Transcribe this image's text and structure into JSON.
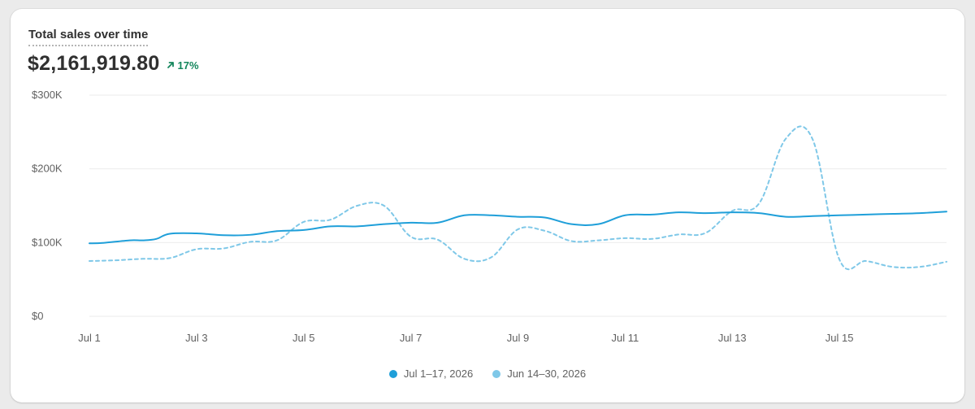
{
  "card": {
    "title": "Total sales over time",
    "total": "$2,161,919.80",
    "change": "17%",
    "change_direction": "up",
    "change_color": "#14865c"
  },
  "chart_data": {
    "type": "line",
    "ylim": [
      0,
      300000
    ],
    "yticks": [
      {
        "value": 0,
        "label": "$0"
      },
      {
        "value": 100000,
        "label": "$100K"
      },
      {
        "value": 200000,
        "label": "$200K"
      },
      {
        "value": 300000,
        "label": "$300K"
      }
    ],
    "x_range": [
      1,
      17
    ],
    "xticks": [
      {
        "value": 1,
        "label": "Jul 1"
      },
      {
        "value": 3,
        "label": "Jul 3"
      },
      {
        "value": 5,
        "label": "Jul 5"
      },
      {
        "value": 7,
        "label": "Jul 7"
      },
      {
        "value": 9,
        "label": "Jul 9"
      },
      {
        "value": 11,
        "label": "Jul 11"
      },
      {
        "value": 13,
        "label": "Jul 13"
      },
      {
        "value": 15,
        "label": "Jul 15"
      }
    ],
    "grid": true,
    "legend": "bottom",
    "series": [
      {
        "name": "Jul 1–17, 2026",
        "color": "#1f9fd9",
        "style": "solid",
        "x": [
          1,
          1.25,
          1.75,
          2,
          2.25,
          2.5,
          3,
          3.5,
          4,
          4.5,
          5,
          5.5,
          6,
          6.5,
          7,
          7.5,
          8,
          8.5,
          9,
          9.5,
          10,
          10.5,
          11,
          11.5,
          12,
          12.5,
          13,
          13.5,
          14,
          14.5,
          15,
          15.5,
          16,
          16.5,
          17
        ],
        "values": [
          99000,
          99500,
          103000,
          103000,
          105000,
          112000,
          112500,
          110000,
          110500,
          115500,
          117000,
          122000,
          122000,
          125000,
          127000,
          127000,
          137000,
          137000,
          135000,
          134000,
          125000,
          125000,
          137000,
          138000,
          141000,
          140000,
          141000,
          140000,
          135000,
          136000,
          137000,
          138000,
          139000,
          140000,
          142000
        ]
      },
      {
        "name": "Jun 14–30, 2026",
        "color": "#7fc8e8",
        "style": "dashed",
        "x": [
          1,
          1.5,
          2,
          2.5,
          3,
          3.5,
          4,
          4.5,
          5,
          5.5,
          6,
          6.5,
          7,
          7.5,
          8,
          8.5,
          9,
          9.5,
          10,
          10.5,
          11,
          11.5,
          12,
          12.5,
          13,
          13.5,
          14,
          14.5,
          15,
          15.5,
          16,
          16.5,
          17
        ],
        "values": [
          75000,
          76000,
          78000,
          79000,
          91000,
          92000,
          101000,
          103000,
          128000,
          131000,
          150000,
          150000,
          108000,
          104000,
          78000,
          80000,
          118000,
          116000,
          102000,
          103000,
          106000,
          105000,
          111000,
          113000,
          143000,
          153000,
          241000,
          240000,
          77000,
          75000,
          67000,
          67000,
          74000
        ]
      }
    ]
  }
}
